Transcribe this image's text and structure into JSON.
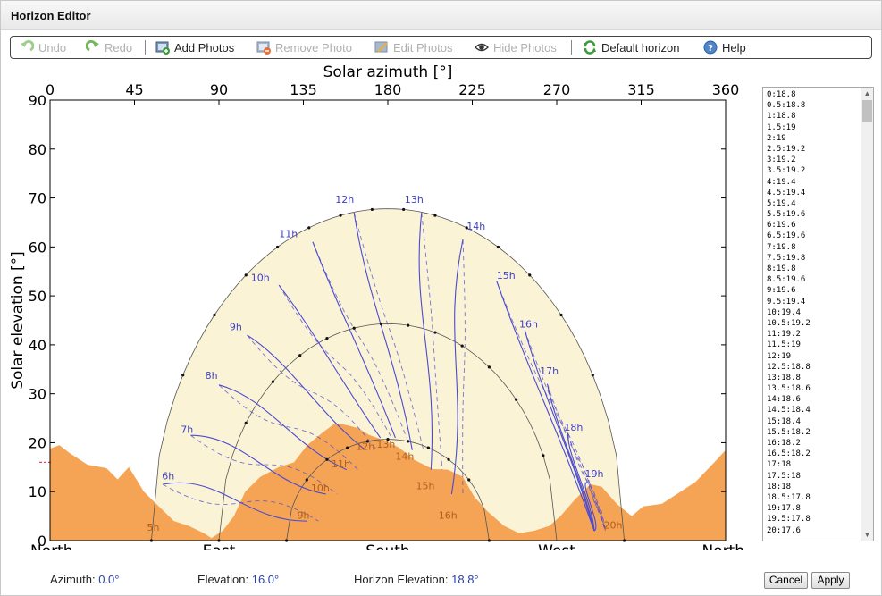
{
  "window": {
    "title": "Horizon Editor"
  },
  "toolbar": {
    "undo": "Undo",
    "redo": "Redo",
    "add_photos": "Add Photos",
    "remove_photo": "Remove Photo",
    "edit_photos": "Edit Photos",
    "hide_photos": "Hide Photos",
    "default_horizon": "Default horizon",
    "help": "Help"
  },
  "chart_data": {
    "type": "line",
    "title": "",
    "xlabel": "Solar azimuth [°]",
    "ylabel": "Solar elevation [°]",
    "xlim": [
      0,
      360
    ],
    "ylim": [
      0,
      90
    ],
    "x_ticks": [
      "0",
      "45",
      "90",
      "135",
      "180",
      "225",
      "270",
      "315",
      "360"
    ],
    "y_ticks": [
      "0",
      "10",
      "20",
      "30",
      "40",
      "50",
      "60",
      "70",
      "80",
      "90"
    ],
    "compass_labels": [
      "North",
      "East",
      "South",
      "West",
      "North"
    ],
    "hour_labels_summer": [
      "6h",
      "7h",
      "8h",
      "9h",
      "10h",
      "11h",
      "12h",
      "13h",
      "14h",
      "15h",
      "16h",
      "17h",
      "18h",
      "19h"
    ],
    "hour_labels_winter": [
      "5h",
      "9h",
      "10h",
      "11h",
      "12h",
      "13h",
      "14h",
      "15h",
      "16h",
      "20h"
    ],
    "summer_path": {
      "max_elevation": 67.8
    },
    "equinox_path": {
      "max_elevation": 44.3
    },
    "winter_path": {
      "max_elevation": 20.7
    },
    "colors": {
      "horizon_fill": "#f5a455",
      "sun_area": "#fbf3d5",
      "analemma": "#4a4ad2",
      "hour_label": "#3f3fc8",
      "winter_label": "#b25e1e"
    }
  },
  "horizon_list": [
    "0:18.8",
    "0.5:18.8",
    "1:18.8",
    "1.5:19",
    "2:19",
    "2.5:19.2",
    "3:19.2",
    "3.5:19.2",
    "4:19.4",
    "4.5:19.4",
    "5:19.4",
    "5.5:19.6",
    "6:19.6",
    "6.5:19.6",
    "7:19.8",
    "7.5:19.8",
    "8:19.8",
    "8.5:19.6",
    "9:19.6",
    "9.5:19.4",
    "10:19.4",
    "10.5:19.2",
    "11:19.2",
    "11.5:19",
    "12:19",
    "12.5:18.8",
    "13:18.8",
    "13.5:18.6",
    "14:18.6",
    "14.5:18.4",
    "15:18.4",
    "15.5:18.2",
    "16:18.2",
    "16.5:18.2",
    "17:18",
    "17.5:18",
    "18:18",
    "18.5:17.8",
    "19:17.8",
    "19.5:17.8",
    "20:17.6"
  ],
  "status": {
    "azimuth_label": "Azimuth:",
    "azimuth_value": "0.0°",
    "elevation_label": "Elevation:",
    "elevation_value": "16.0°",
    "horizon_label": "Horizon Elevation:",
    "horizon_value": "18.8°"
  },
  "buttons": {
    "cancel": "Cancel",
    "apply": "Apply"
  }
}
